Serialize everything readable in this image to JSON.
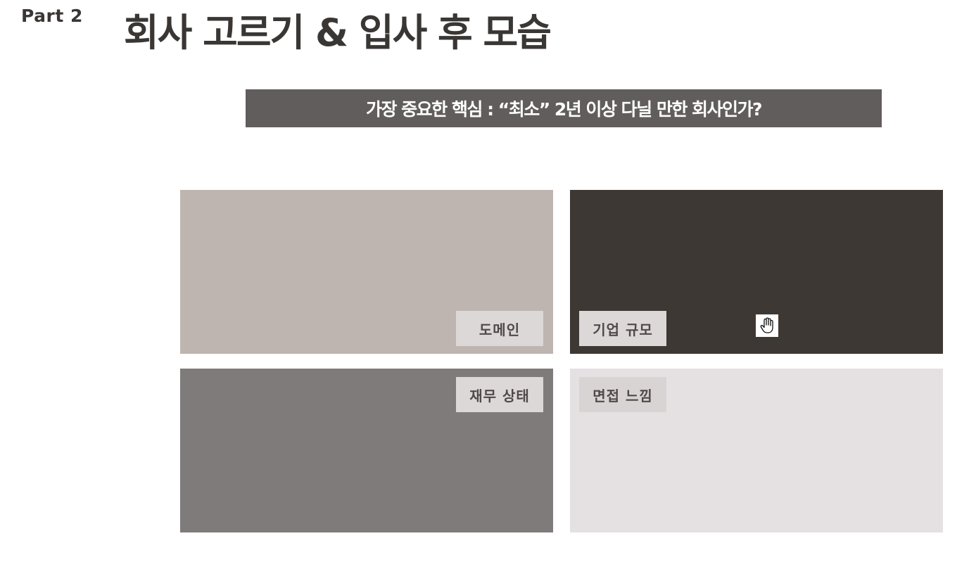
{
  "header": {
    "part_label": "Part 2",
    "title": "회사 고르기 & 입사 후 모습"
  },
  "banner": {
    "text": "가장 중요한 핵심 : “최소” 2년 이상 다닐 만한 회사인가?"
  },
  "tiles": [
    {
      "label": "도메인",
      "color": "#beb5b1"
    },
    {
      "label": "기업 규모",
      "color": "#3e3835"
    },
    {
      "label": "재무 상태",
      "color": "#7e7b7a"
    },
    {
      "label": "면접 느낌",
      "color": "#e5e0e1"
    }
  ],
  "cursor": {
    "icon": "hand-pointer-icon"
  }
}
